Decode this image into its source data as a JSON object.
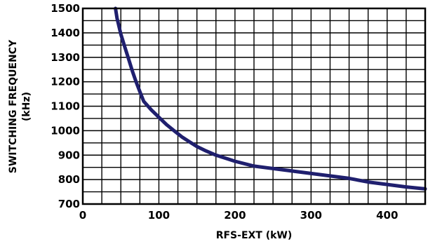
{
  "chart_data": {
    "type": "line",
    "title": "",
    "xlabel": "RFS-EXT (kW)",
    "ylabel_line1": "SWITCHING FREQUENCY",
    "ylabel_line2": "(kHz)",
    "xlim": [
      0,
      450
    ],
    "ylim": [
      700,
      1500
    ],
    "grid": true,
    "grid_x_step": 25,
    "grid_y_step": 50,
    "x_ticks": [
      0,
      100,
      200,
      300,
      400
    ],
    "y_ticks": [
      700,
      800,
      900,
      1000,
      1100,
      1200,
      1300,
      1400,
      1500
    ],
    "series_color": "#1f1f6e",
    "series": [
      {
        "x": [
          43,
          45,
          50,
          55,
          60,
          65,
          70,
          75,
          80,
          90,
          100,
          110,
          120,
          130,
          140,
          150,
          160,
          175,
          200,
          225,
          250,
          275,
          300,
          325,
          350,
          375,
          400,
          425,
          450
        ],
        "y": [
          1500,
          1460,
          1395,
          1345,
          1295,
          1245,
          1200,
          1160,
          1120,
          1085,
          1055,
          1025,
          1000,
          975,
          955,
          935,
          920,
          900,
          875,
          855,
          845,
          835,
          825,
          815,
          805,
          790,
          780,
          770,
          762
        ]
      }
    ]
  }
}
